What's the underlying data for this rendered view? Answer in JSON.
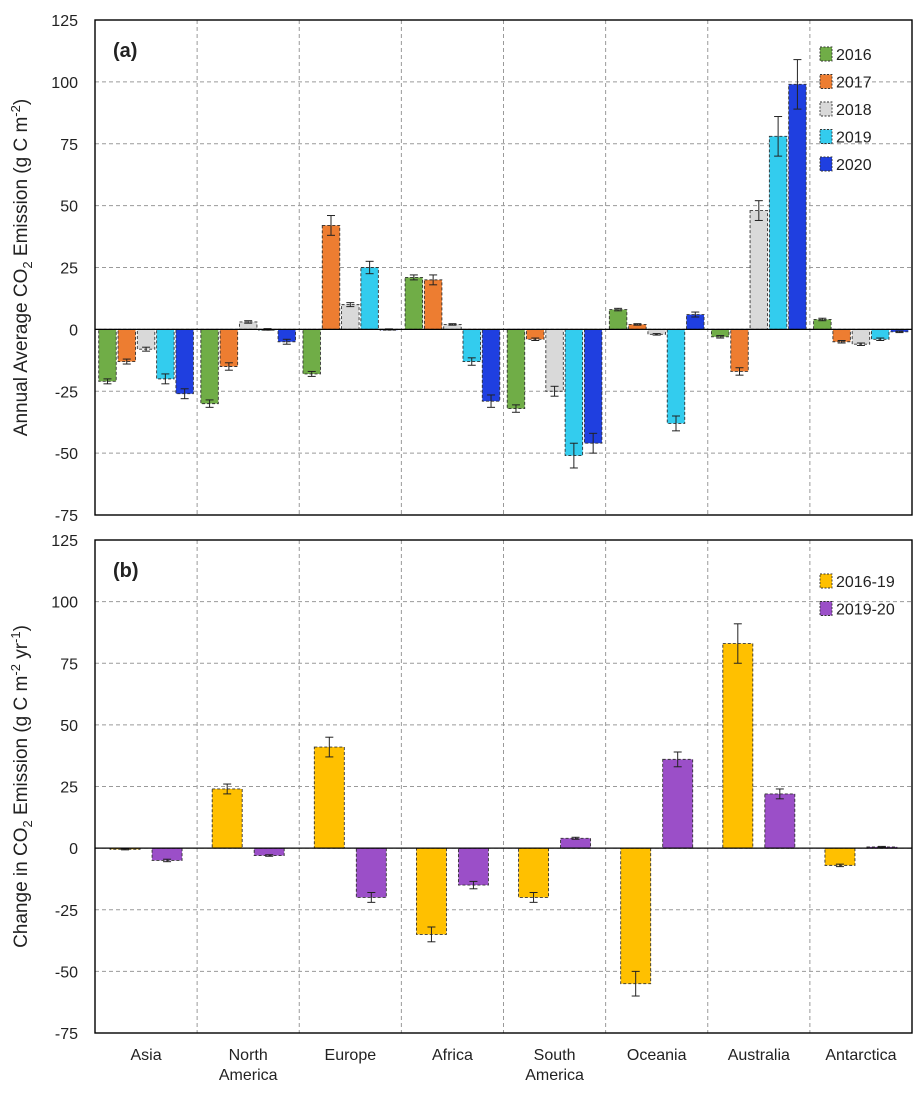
{
  "chart_data": [
    {
      "type": "bar",
      "panel_label": "(a)",
      "ylabel": "Annual Average CO2 Emission (g C m-2)",
      "ylabel_parts": {
        "a": "Annual Average CO",
        "b": "2",
        "c": " Emission (g C m",
        "d": "-2",
        "e": ")"
      },
      "ylim": [
        -75,
        125
      ],
      "yticks": [
        125,
        100,
        75,
        50,
        25,
        0,
        -25,
        -50,
        -75
      ],
      "grid": true,
      "legend_position": "top-right",
      "categories": [
        "Asia",
        "North America",
        "Europe",
        "Africa",
        "South America",
        "Oceania",
        "Australia",
        "Antarctica"
      ],
      "series": [
        {
          "name": "2016",
          "color": "#70AD47",
          "values": [
            -21,
            -30,
            -18,
            21,
            -32,
            8,
            -3,
            4
          ],
          "errors": [
            1,
            1.5,
            1,
            1,
            1.5,
            0.5,
            0.5,
            0.5
          ]
        },
        {
          "name": "2017",
          "color": "#ED7D31",
          "values": [
            -13,
            -15,
            42,
            20,
            -4,
            2,
            -17,
            -5
          ],
          "errors": [
            1,
            1.5,
            4,
            2,
            0.5,
            0.3,
            1.5,
            0.5
          ]
        },
        {
          "name": "2018",
          "color": "#D9D9D9",
          "values": [
            -8,
            3,
            10,
            2,
            -25,
            -2,
            48,
            -6
          ],
          "errors": [
            0.8,
            0.5,
            0.8,
            0.3,
            2,
            0.3,
            4,
            0.5
          ]
        },
        {
          "name": "2019",
          "color": "#33CCEE",
          "values": [
            -20,
            0,
            25,
            -13,
            -51,
            -38,
            78,
            -4
          ],
          "errors": [
            2,
            0.3,
            2.5,
            1.5,
            5,
            3,
            8,
            0.5
          ]
        },
        {
          "name": "2020",
          "color": "#1F3FE0",
          "values": [
            -26,
            -5,
            0,
            -29,
            -46,
            6,
            99,
            -1
          ],
          "errors": [
            2,
            1,
            0.2,
            2.5,
            4,
            1,
            10,
            0.3
          ]
        }
      ]
    },
    {
      "type": "bar",
      "panel_label": "(b)",
      "ylabel": "Change in CO2 Emission (g C m-2 yr-1)",
      "ylabel_parts": {
        "a": "Change in CO",
        "b": "2",
        "c": " Emission (g C m",
        "d": "-2",
        "e": " yr",
        "f": "-1",
        "g": ")"
      },
      "ylim": [
        -75,
        125
      ],
      "yticks": [
        125,
        100,
        75,
        50,
        25,
        0,
        -25,
        -50,
        -75
      ],
      "grid": true,
      "legend_position": "top-right",
      "categories": [
        "Asia",
        "North America",
        "Europe",
        "Africa",
        "South America",
        "Oceania",
        "Australia",
        "Antarctica"
      ],
      "category_labels": [
        [
          "Asia"
        ],
        [
          "North",
          "America"
        ],
        [
          "Europe"
        ],
        [
          "Africa"
        ],
        [
          "South",
          "America"
        ],
        [
          "Oceania"
        ],
        [
          "Australia"
        ],
        [
          "Antarctica"
        ]
      ],
      "series": [
        {
          "name": "2016-19",
          "color": "#FFC000",
          "values": [
            -0.5,
            24,
            41,
            -35,
            -20,
            -55,
            83,
            -7
          ],
          "errors": [
            0.2,
            2,
            4,
            3,
            2,
            5,
            8,
            0.5
          ]
        },
        {
          "name": "2019-20",
          "color": "#9B4FC8",
          "values": [
            -5,
            -3,
            -20,
            -15,
            4,
            36,
            22,
            0.5
          ],
          "errors": [
            0.5,
            0.3,
            2,
            1.5,
            0.4,
            3,
            2,
            0.2
          ]
        }
      ]
    }
  ]
}
